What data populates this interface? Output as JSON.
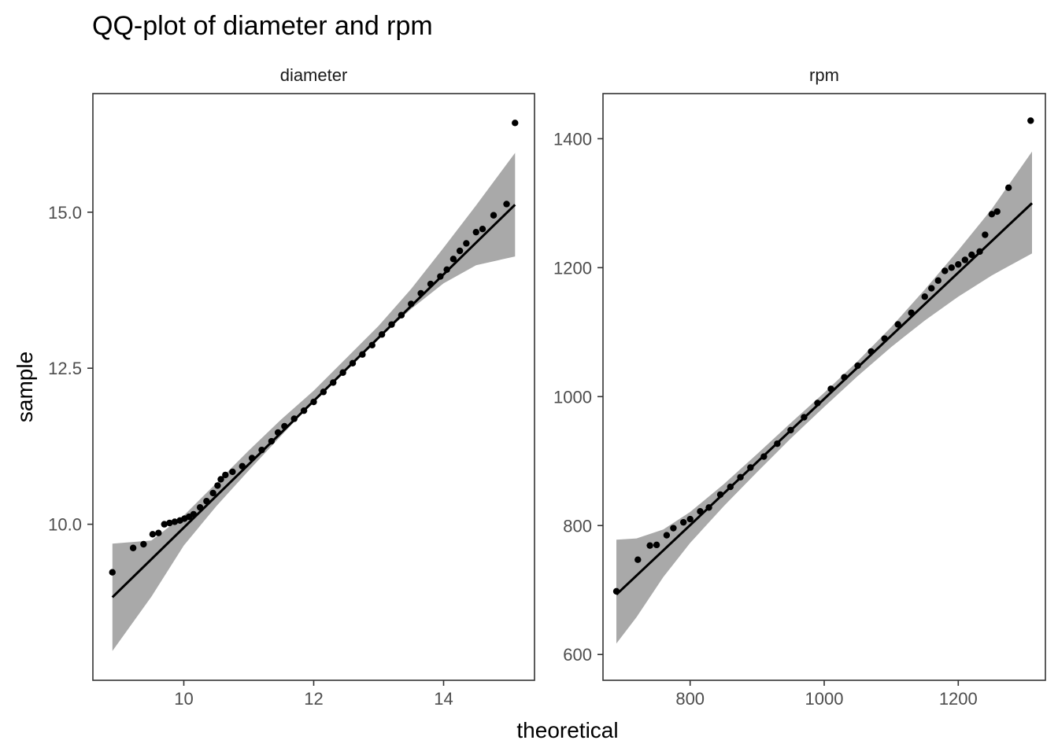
{
  "chart_data": {
    "type": "scatter",
    "title": "QQ-plot of diameter and rpm",
    "xlabel": "theoretical",
    "ylabel": "sample",
    "grid": false,
    "colors": {
      "points": "#000000",
      "line": "#000000",
      "band": "#a9a9a9",
      "panel_border": "#333333"
    },
    "panels": [
      {
        "name": "diameter",
        "xlim": [
          8.6,
          15.4
        ],
        "ylim": [
          7.5,
          16.9
        ],
        "x_ticks": [
          10,
          12,
          14
        ],
        "x_tick_labels": [
          "10",
          "12",
          "14"
        ],
        "y_ticks": [
          10.0,
          12.5,
          15.0
        ],
        "y_tick_labels": [
          "10.0",
          "12.5",
          "15.0"
        ],
        "reference_line": {
          "x": [
            8.9,
            15.1
          ],
          "y": [
            8.83,
            15.12
          ]
        },
        "band": {
          "x": [
            8.9,
            9.5,
            10.0,
            10.5,
            11.0,
            11.5,
            12.0,
            12.5,
            13.0,
            13.5,
            14.0,
            14.5,
            15.1
          ],
          "lower": [
            7.97,
            8.84,
            9.66,
            10.29,
            10.86,
            11.42,
            11.97,
            12.48,
            12.98,
            13.45,
            13.86,
            14.15,
            14.29
          ],
          "upper": [
            9.69,
            9.74,
            10.14,
            10.66,
            11.18,
            11.68,
            12.14,
            12.66,
            13.18,
            13.77,
            14.43,
            15.11,
            15.95
          ]
        },
        "points": [
          [
            8.9,
            9.23
          ],
          [
            9.22,
            9.62
          ],
          [
            9.38,
            9.68
          ],
          [
            9.52,
            9.84
          ],
          [
            9.61,
            9.86
          ],
          [
            9.7,
            10.0
          ],
          [
            9.78,
            10.02
          ],
          [
            9.86,
            10.04
          ],
          [
            9.94,
            10.06
          ],
          [
            10.01,
            10.09
          ],
          [
            10.08,
            10.12
          ],
          [
            10.15,
            10.16
          ],
          [
            10.25,
            10.27
          ],
          [
            10.35,
            10.37
          ],
          [
            10.45,
            10.5
          ],
          [
            10.52,
            10.62
          ],
          [
            10.57,
            10.72
          ],
          [
            10.64,
            10.79
          ],
          [
            10.75,
            10.84
          ],
          [
            10.9,
            10.93
          ],
          [
            11.05,
            11.06
          ],
          [
            11.2,
            11.19
          ],
          [
            11.35,
            11.33
          ],
          [
            11.45,
            11.47
          ],
          [
            11.55,
            11.57
          ],
          [
            11.7,
            11.69
          ],
          [
            11.85,
            11.82
          ],
          [
            12.0,
            11.96
          ],
          [
            12.15,
            12.12
          ],
          [
            12.3,
            12.27
          ],
          [
            12.45,
            12.43
          ],
          [
            12.6,
            12.58
          ],
          [
            12.75,
            12.72
          ],
          [
            12.9,
            12.87
          ],
          [
            13.05,
            13.04
          ],
          [
            13.2,
            13.2
          ],
          [
            13.35,
            13.35
          ],
          [
            13.5,
            13.53
          ],
          [
            13.65,
            13.7
          ],
          [
            13.8,
            13.85
          ],
          [
            13.95,
            13.97
          ],
          [
            14.05,
            14.08
          ],
          [
            14.15,
            14.25
          ],
          [
            14.25,
            14.38
          ],
          [
            14.35,
            14.5
          ],
          [
            14.5,
            14.68
          ],
          [
            14.6,
            14.73
          ],
          [
            14.77,
            14.95
          ],
          [
            14.97,
            15.13
          ],
          [
            15.1,
            16.43
          ]
        ]
      },
      {
        "name": "rpm",
        "xlim": [
          670,
          1330
        ],
        "ylim": [
          560,
          1470
        ],
        "x_ticks": [
          800,
          1000,
          1200
        ],
        "x_tick_labels": [
          "800",
          "1000",
          "1200"
        ],
        "y_ticks": [
          600,
          800,
          1000,
          1200,
          1400
        ],
        "y_tick_labels": [
          "600",
          "800",
          "1000",
          "1200",
          "1400"
        ],
        "reference_line": {
          "x": [
            690,
            1310
          ],
          "y": [
            693,
            1300
          ]
        },
        "band": {
          "x": [
            690,
            720,
            760,
            800,
            850,
            900,
            950,
            1000,
            1050,
            1100,
            1150,
            1200,
            1250,
            1310
          ],
          "lower": [
            617,
            658,
            720,
            773,
            830,
            883,
            935,
            984,
            1032,
            1077,
            1118,
            1155,
            1188,
            1222
          ],
          "upper": [
            778,
            780,
            794,
            821,
            864,
            911,
            959,
            1006,
            1055,
            1108,
            1166,
            1227,
            1291,
            1380
          ]
        },
        "points": [
          [
            690,
            698
          ],
          [
            722,
            747
          ],
          [
            740,
            769
          ],
          [
            750,
            770
          ],
          [
            765,
            785
          ],
          [
            775,
            796
          ],
          [
            790,
            805
          ],
          [
            800,
            810
          ],
          [
            815,
            822
          ],
          [
            828,
            828
          ],
          [
            845,
            848
          ],
          [
            860,
            860
          ],
          [
            875,
            875
          ],
          [
            890,
            890
          ],
          [
            910,
            907
          ],
          [
            930,
            927
          ],
          [
            950,
            948
          ],
          [
            970,
            968
          ],
          [
            990,
            990
          ],
          [
            1010,
            1012
          ],
          [
            1030,
            1030
          ],
          [
            1050,
            1048
          ],
          [
            1070,
            1070
          ],
          [
            1090,
            1090
          ],
          [
            1110,
            1112
          ],
          [
            1130,
            1130
          ],
          [
            1150,
            1155
          ],
          [
            1160,
            1168
          ],
          [
            1170,
            1180
          ],
          [
            1180,
            1195
          ],
          [
            1190,
            1200
          ],
          [
            1200,
            1205
          ],
          [
            1210,
            1212
          ],
          [
            1220,
            1220
          ],
          [
            1232,
            1225
          ],
          [
            1240,
            1251
          ],
          [
            1250,
            1283
          ],
          [
            1258,
            1287
          ],
          [
            1275,
            1324
          ],
          [
            1308,
            1428
          ]
        ]
      }
    ]
  }
}
